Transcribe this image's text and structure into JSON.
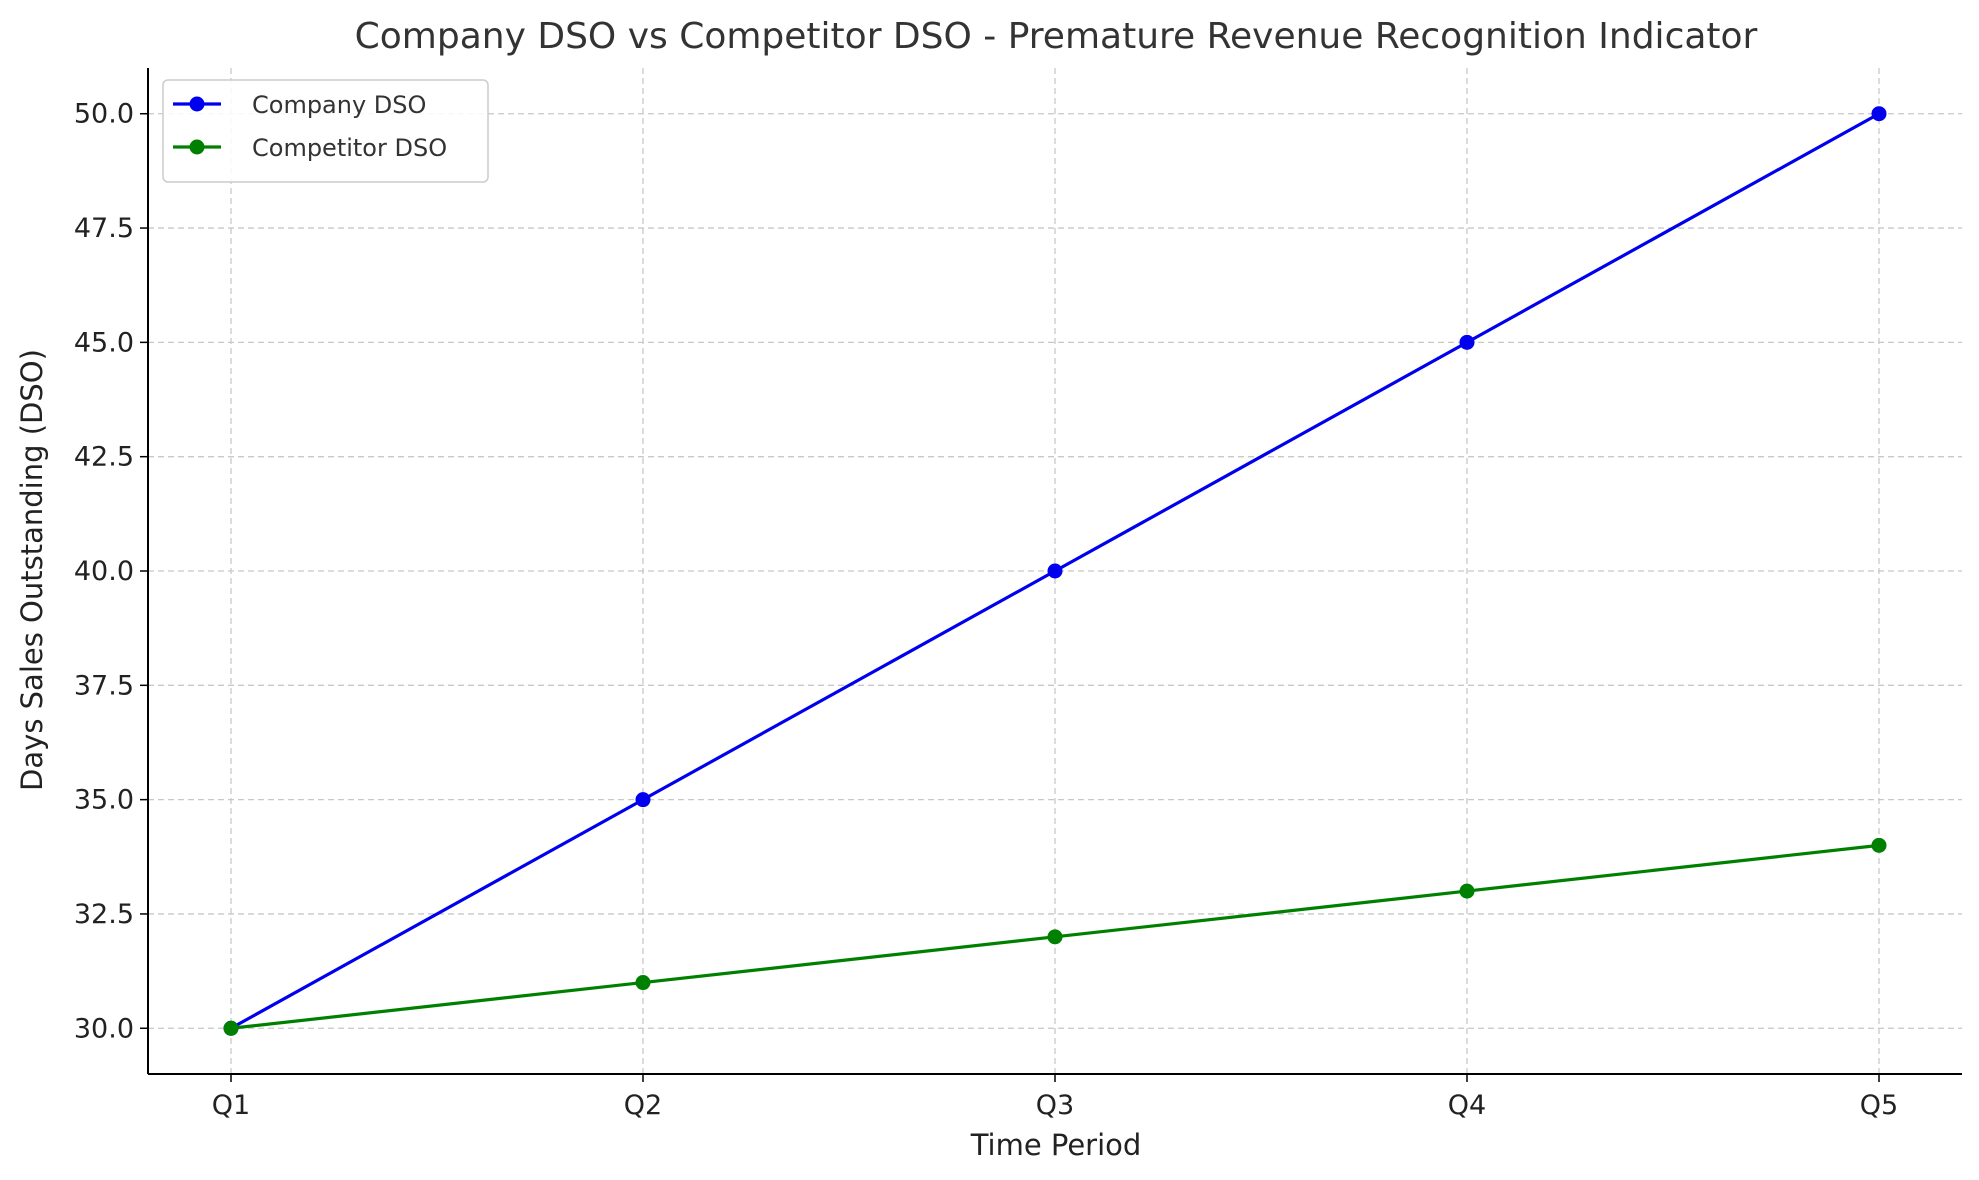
{
  "chart_data": {
    "type": "line",
    "title": "Company DSO vs Competitor DSO - Premature Revenue Recognition Indicator",
    "xlabel": "Time Period",
    "ylabel": "Days Sales Outstanding (DSO)",
    "categories": [
      "Q1",
      "Q2",
      "Q3",
      "Q4",
      "Q5"
    ],
    "ylim": [
      29,
      51
    ],
    "yticks": [
      30.0,
      32.5,
      35.0,
      37.5,
      40.0,
      42.5,
      45.0,
      47.5,
      50.0
    ],
    "grid": true,
    "legend_position": "top-left",
    "series": [
      {
        "name": "Company DSO",
        "color": "#0000ee",
        "values": [
          30,
          35,
          40,
          45,
          50
        ]
      },
      {
        "name": "Competitor DSO",
        "color": "#008000",
        "values": [
          30,
          31,
          32,
          33,
          34
        ]
      }
    ]
  }
}
